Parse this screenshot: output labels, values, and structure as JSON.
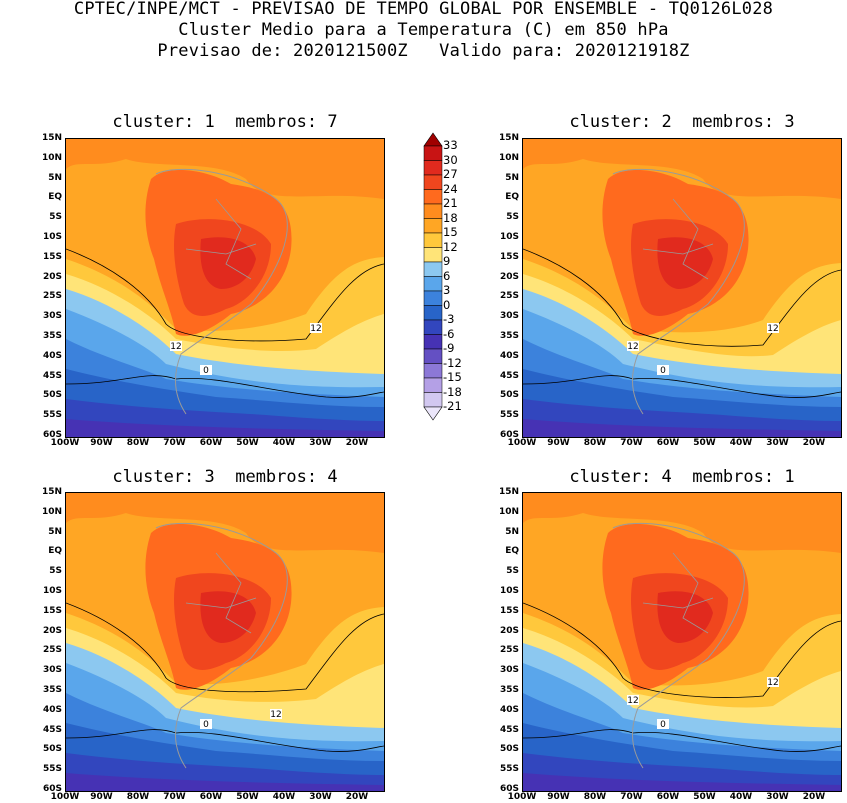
{
  "header": {
    "line1": "CPTEC/INPE/MCT - PREVISAO DE TEMPO GLOBAL POR ENSEMBLE - TQ0126L028",
    "line2": "Cluster Medio para a Temperatura (C) em 850 hPa",
    "line3": "Previsao de: 2020121500Z   Valido para: 2020121918Z"
  },
  "panels": [
    {
      "title": "cluster: 1  membros: 7",
      "contour_labels": [
        "12",
        "12",
        "0"
      ]
    },
    {
      "title": "cluster: 2  membros: 3",
      "contour_labels": [
        "12",
        "12",
        "0"
      ]
    },
    {
      "title": "cluster: 3  membros: 4",
      "contour_labels": [
        "12",
        "0"
      ]
    },
    {
      "title": "cluster: 4  membros: 1",
      "contour_labels": [
        "12",
        "12",
        "0"
      ]
    }
  ],
  "lat_ticks": [
    "15N",
    "10N",
    "5N",
    "EQ",
    "5S",
    "10S",
    "15S",
    "20S",
    "25S",
    "30S",
    "35S",
    "40S",
    "45S",
    "50S",
    "55S",
    "60S"
  ],
  "lon_ticks": [
    "100W",
    "90W",
    "80W",
    "70W",
    "60W",
    "50W",
    "40W",
    "30W",
    "20W"
  ],
  "colorbar": {
    "levels": [
      "33",
      "30",
      "27",
      "24",
      "21",
      "18",
      "15",
      "12",
      "9",
      "6",
      "3",
      "0",
      "-3",
      "-6",
      "-9",
      "-12",
      "-15",
      "-18",
      "-21"
    ],
    "colors": [
      "#a00000",
      "#c81414",
      "#e12a1e",
      "#f0461e",
      "#ff6a1e",
      "#ff8c1e",
      "#ffa624",
      "#ffc83c",
      "#ffe478",
      "#8cc8f0",
      "#5aa6eb",
      "#3c82dc",
      "#2864c8",
      "#3246be",
      "#4632b4",
      "#6450c3",
      "#8c78d7",
      "#b4a0e6",
      "#d2c8f0",
      "#ebe6fa"
    ]
  }
}
